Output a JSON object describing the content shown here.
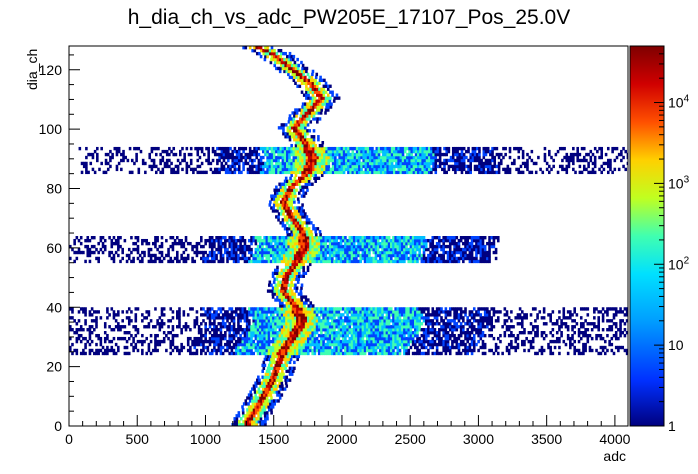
{
  "chart_data": {
    "type": "heatmap",
    "title": "h_dia_ch_vs_adc_PW205E_17107_Pos_25.0V",
    "xlabel": "adc",
    "ylabel": "dia_ch",
    "xlim": [
      0,
      4096
    ],
    "ylim": [
      0,
      128
    ],
    "x_ticks": [
      "0",
      "500",
      "1000",
      "1500",
      "2000",
      "2500",
      "3000",
      "3500",
      "4000"
    ],
    "x_tick_values": [
      0,
      500,
      1000,
      1500,
      2000,
      2500,
      3000,
      3500,
      4000
    ],
    "y_ticks": [
      "0",
      "20",
      "40",
      "60",
      "80",
      "100",
      "120"
    ],
    "y_tick_values": [
      0,
      20,
      40,
      60,
      80,
      100,
      120
    ],
    "z_scale": "log",
    "zlim": [
      1,
      50000
    ],
    "z_ticks": [
      {
        "value": 1,
        "base": "1",
        "exp": ""
      },
      {
        "value": 10,
        "base": "10",
        "exp": ""
      },
      {
        "value": 100,
        "base": "10",
        "exp": "2"
      },
      {
        "value": 1000,
        "base": "10",
        "exp": "3"
      },
      {
        "value": 10000,
        "base": "10",
        "exp": "4"
      }
    ],
    "colormap": [
      "#00007f",
      "#0044ff",
      "#00c0ff",
      "#40ffb0",
      "#c0ff20",
      "#ffd000",
      "#ff5000",
      "#c00000",
      "#7f0000"
    ],
    "bands": [
      {
        "channels": [
          85,
          93
        ],
        "adc_range": [
          70,
          4096
        ],
        "note": "wide band"
      },
      {
        "channels": [
          55,
          63
        ],
        "adc_range": [
          0,
          3150
        ],
        "note": "wide band"
      },
      {
        "channels": [
          24,
          39
        ],
        "adc_range": [
          0,
          4096
        ],
        "note": "wide band"
      }
    ],
    "peak_ridge": [
      {
        "ch": 1,
        "adc": 1300
      },
      {
        "ch": 5,
        "adc": 1360
      },
      {
        "ch": 10,
        "adc": 1420
      },
      {
        "ch": 15,
        "adc": 1480
      },
      {
        "ch": 20,
        "adc": 1520
      },
      {
        "ch": 25,
        "adc": 1560
      },
      {
        "ch": 30,
        "adc": 1640
      },
      {
        "ch": 35,
        "adc": 1700
      },
      {
        "ch": 40,
        "adc": 1650
      },
      {
        "ch": 45,
        "adc": 1560
      },
      {
        "ch": 50,
        "adc": 1580
      },
      {
        "ch": 55,
        "adc": 1660
      },
      {
        "ch": 60,
        "adc": 1720
      },
      {
        "ch": 65,
        "adc": 1700
      },
      {
        "ch": 70,
        "adc": 1620
      },
      {
        "ch": 75,
        "adc": 1560
      },
      {
        "ch": 80,
        "adc": 1620
      },
      {
        "ch": 85,
        "adc": 1740
      },
      {
        "ch": 90,
        "adc": 1780
      },
      {
        "ch": 95,
        "adc": 1720
      },
      {
        "ch": 100,
        "adc": 1640
      },
      {
        "ch": 105,
        "adc": 1740
      },
      {
        "ch": 110,
        "adc": 1840
      },
      {
        "ch": 115,
        "adc": 1760
      },
      {
        "ch": 120,
        "adc": 1620
      },
      {
        "ch": 125,
        "adc": 1480
      },
      {
        "ch": 127,
        "adc": 1380
      }
    ]
  }
}
